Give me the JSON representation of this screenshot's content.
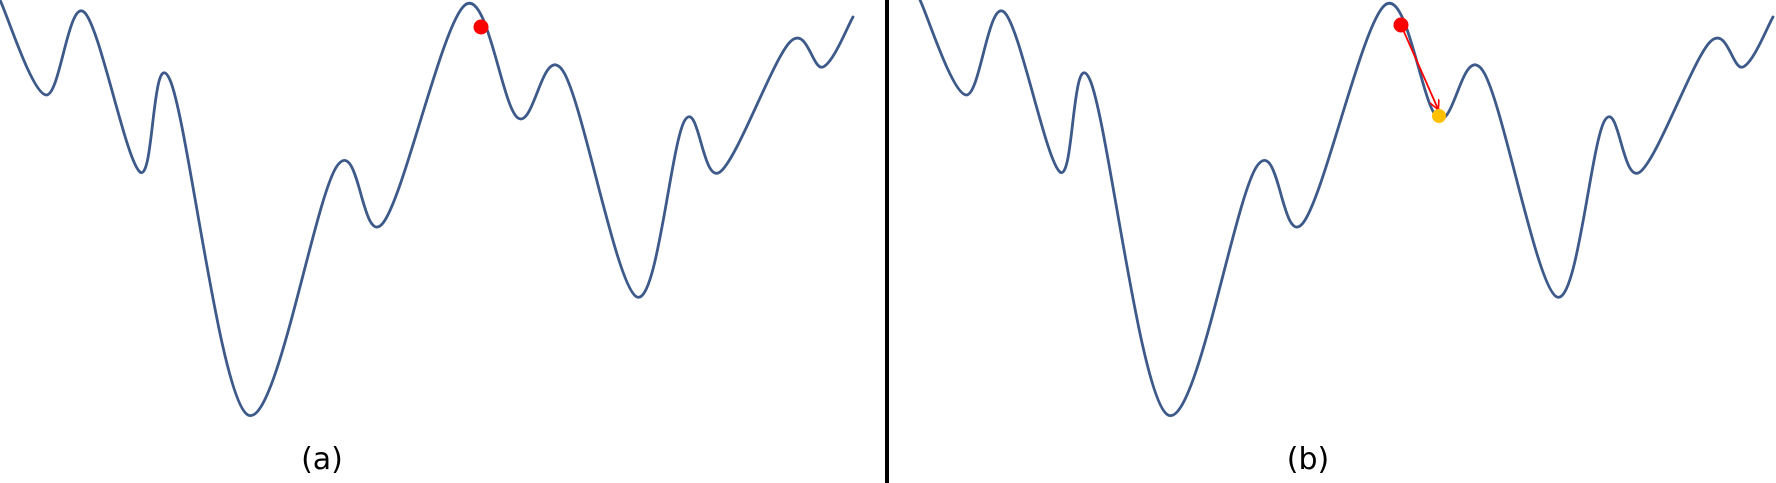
{
  "colors": {
    "curve": "#3d5a8a",
    "current_point": "#ff0000",
    "next_point": "#ffc000",
    "step_arrow": "#ff0000",
    "divider": "#000000",
    "background": "#ffffff"
  },
  "panels": [
    {
      "id": "a",
      "label": "(a)",
      "markers": [
        "current_point"
      ],
      "step_arrow": false
    },
    {
      "id": "b",
      "label": "(b)",
      "markers": [
        "current_point",
        "next_point"
      ],
      "step_arrow": true
    }
  ]
}
